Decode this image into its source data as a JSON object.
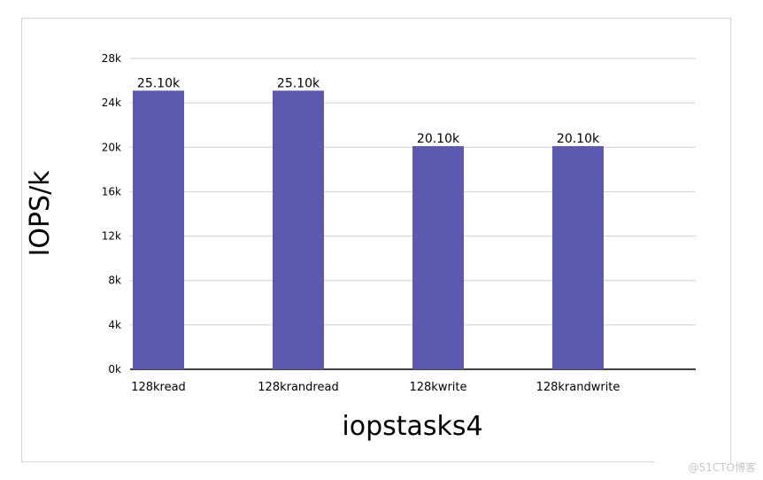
{
  "chart_data": {
    "type": "bar",
    "categories": [
      "128kread",
      "128krandread",
      "128kwrite",
      "128krandwrite"
    ],
    "values": [
      25.1,
      25.1,
      20.1,
      20.1
    ],
    "data_labels": [
      "25.10k",
      "25.10k",
      "20.10k",
      "20.10k"
    ],
    "xlabel": "iopstasks4",
    "ylabel": "IOPS/k",
    "ylim": [
      0,
      28
    ],
    "yticks": [
      0,
      4,
      8,
      12,
      16,
      20,
      24,
      28
    ],
    "ytick_labels": [
      "0k",
      "4k",
      "8k",
      "12k",
      "16k",
      "20k",
      "24k",
      "28k"
    ],
    "grid": true,
    "bar_color": "#5b5aae"
  },
  "watermark": "@51CTO博客"
}
